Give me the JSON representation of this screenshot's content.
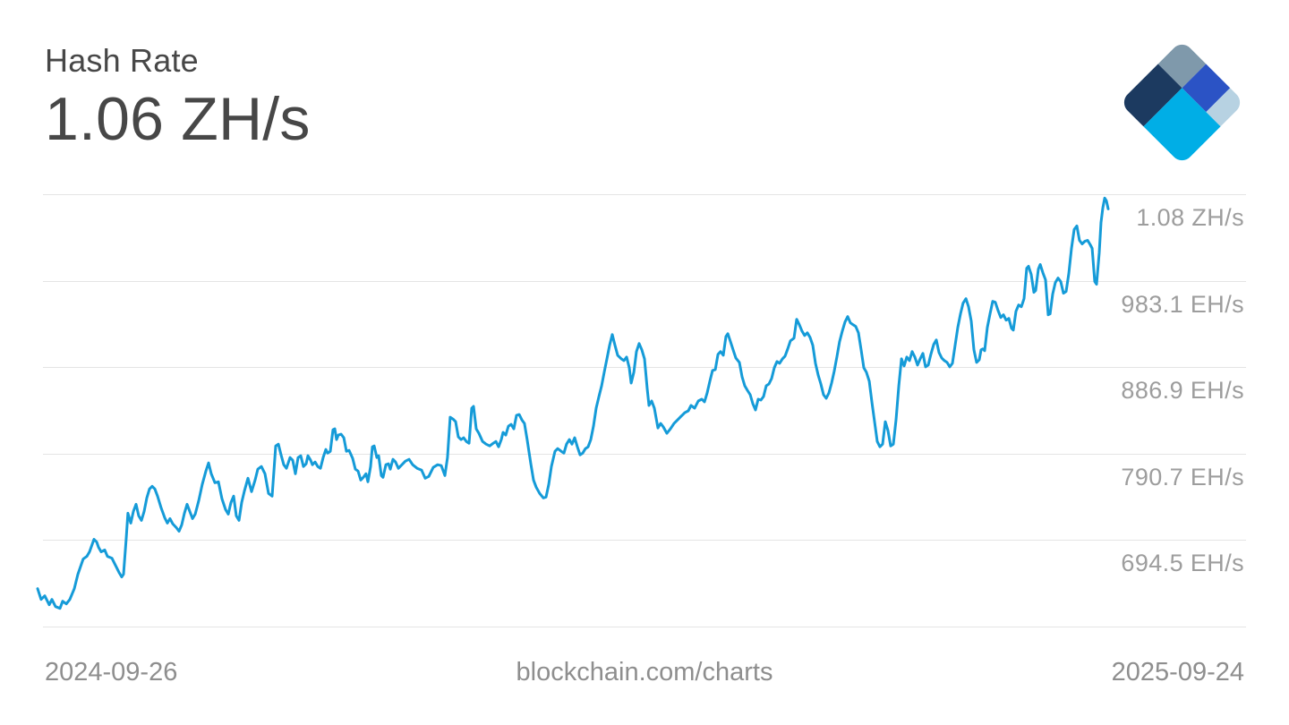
{
  "header": {
    "title": "Hash Rate",
    "value": "1.06 ZH/s"
  },
  "footer": {
    "start_date": "2024-09-26",
    "site": "blockchain.com/charts",
    "end_date": "2025-09-24"
  },
  "logo": {
    "name": "blockchain-com-logo",
    "colors": {
      "slate": "#7F99AB",
      "royal": "#2B53C5",
      "light": "#B7D2E2",
      "navy": "#1C3A60",
      "cyan": "#00AEE6"
    }
  },
  "colors": {
    "title_text": "#474747",
    "axis_label": "#9D9D9D",
    "footer_text": "#8E8E8E",
    "grid": "#E4E4E4",
    "background": "#FFFFFF"
  },
  "chart_data": {
    "type": "line",
    "title": "Hash Rate",
    "current_value": "1.06 ZH/s",
    "unit": "EH/s",
    "x_range": [
      "2024-09-26",
      "2025-09-24"
    ],
    "legend": "none",
    "grid": "horizontal-only",
    "line_color": "#159BD8",
    "y_axis": {
      "side": "right",
      "ticks": [
        {
          "value": 1079.3,
          "label": "1.08 ZH/s"
        },
        {
          "value": 983.1,
          "label": "983.1 EH/s"
        },
        {
          "value": 886.9,
          "label": "886.9 EH/s"
        },
        {
          "value": 790.7,
          "label": "790.7 EH/s"
        },
        {
          "value": 694.5,
          "label": "694.5 EH/s"
        },
        {
          "value": 598.3,
          "label": ""
        }
      ]
    },
    "points": [
      [
        0,
        640
      ],
      [
        0.0033,
        628
      ],
      [
        0.0067,
        632
      ],
      [
        0.0109,
        622
      ],
      [
        0.0134,
        628
      ],
      [
        0.0167,
        620
      ],
      [
        0.0209,
        618
      ],
      [
        0.0234,
        626
      ],
      [
        0.0268,
        623
      ],
      [
        0.0301,
        628
      ],
      [
        0.0343,
        640
      ],
      [
        0.0376,
        656
      ],
      [
        0.0426,
        673
      ],
      [
        0.046,
        676
      ],
      [
        0.0485,
        681
      ],
      [
        0.0527,
        695
      ],
      [
        0.0552,
        692
      ],
      [
        0.0569,
        686
      ],
      [
        0.0594,
        681
      ],
      [
        0.0627,
        683
      ],
      [
        0.0652,
        676
      ],
      [
        0.0694,
        674
      ],
      [
        0.0736,
        664
      ],
      [
        0.0761,
        658
      ],
      [
        0.0786,
        653
      ],
      [
        0.0803,
        656
      ],
      [
        0.0828,
        696
      ],
      [
        0.0844,
        724
      ],
      [
        0.087,
        713
      ],
      [
        0.0895,
        726
      ],
      [
        0.092,
        734
      ],
      [
        0.0945,
        721
      ],
      [
        0.097,
        716
      ],
      [
        0.0995,
        726
      ],
      [
        0.102,
        741
      ],
      [
        0.1045,
        751
      ],
      [
        0.107,
        754
      ],
      [
        0.1095,
        751
      ],
      [
        0.112,
        743
      ],
      [
        0.1154,
        730
      ],
      [
        0.1187,
        719
      ],
      [
        0.1212,
        713
      ],
      [
        0.1237,
        718
      ],
      [
        0.1263,
        712
      ],
      [
        0.1296,
        708
      ],
      [
        0.1321,
        704
      ],
      [
        0.1346,
        711
      ],
      [
        0.1371,
        724
      ],
      [
        0.1396,
        734
      ],
      [
        0.1421,
        726
      ],
      [
        0.1447,
        718
      ],
      [
        0.1472,
        723
      ],
      [
        0.1505,
        738
      ],
      [
        0.1538,
        756
      ],
      [
        0.1572,
        771
      ],
      [
        0.1597,
        780
      ],
      [
        0.1622,
        768
      ],
      [
        0.1656,
        758
      ],
      [
        0.1689,
        759
      ],
      [
        0.1722,
        740
      ],
      [
        0.1756,
        728
      ],
      [
        0.1781,
        723
      ],
      [
        0.1806,
        736
      ],
      [
        0.1831,
        743
      ],
      [
        0.1856,
        721
      ],
      [
        0.1881,
        716
      ],
      [
        0.1906,
        736
      ],
      [
        0.1932,
        749
      ],
      [
        0.1965,
        763
      ],
      [
        0.1998,
        748
      ],
      [
        0.2032,
        761
      ],
      [
        0.2057,
        773
      ],
      [
        0.209,
        776
      ],
      [
        0.2124,
        768
      ],
      [
        0.2157,
        746
      ],
      [
        0.2191,
        743
      ],
      [
        0.2224,
        799
      ],
      [
        0.2249,
        801
      ],
      [
        0.2274,
        789
      ],
      [
        0.2299,
        778
      ],
      [
        0.2324,
        774
      ],
      [
        0.2358,
        786
      ],
      [
        0.2383,
        783
      ],
      [
        0.2408,
        768
      ],
      [
        0.2433,
        786
      ],
      [
        0.2458,
        788
      ],
      [
        0.2483,
        776
      ],
      [
        0.2508,
        779
      ],
      [
        0.2525,
        788
      ],
      [
        0.255,
        783
      ],
      [
        0.2567,
        778
      ],
      [
        0.2592,
        781
      ],
      [
        0.2617,
        776
      ],
      [
        0.2642,
        774
      ],
      [
        0.2667,
        786
      ],
      [
        0.2692,
        795
      ],
      [
        0.2709,
        791
      ],
      [
        0.2734,
        793
      ],
      [
        0.2759,
        817
      ],
      [
        0.2776,
        818
      ],
      [
        0.2793,
        806
      ],
      [
        0.2809,
        811
      ],
      [
        0.2835,
        812
      ],
      [
        0.286,
        808
      ],
      [
        0.2885,
        793
      ],
      [
        0.291,
        794
      ],
      [
        0.2943,
        785
      ],
      [
        0.2968,
        773
      ],
      [
        0.2993,
        771
      ],
      [
        0.3018,
        761
      ],
      [
        0.3043,
        764
      ],
      [
        0.3068,
        768
      ],
      [
        0.3085,
        759
      ],
      [
        0.311,
        776
      ],
      [
        0.3127,
        798
      ],
      [
        0.3144,
        799
      ],
      [
        0.3169,
        786
      ],
      [
        0.3186,
        788
      ],
      [
        0.3211,
        766
      ],
      [
        0.3227,
        764
      ],
      [
        0.3253,
        778
      ],
      [
        0.3278,
        779
      ],
      [
        0.3294,
        773
      ],
      [
        0.3319,
        784
      ],
      [
        0.3344,
        781
      ],
      [
        0.337,
        774
      ],
      [
        0.3403,
        778
      ],
      [
        0.3436,
        782
      ],
      [
        0.347,
        784
      ],
      [
        0.3503,
        778
      ],
      [
        0.3545,
        774
      ],
      [
        0.3587,
        772
      ],
      [
        0.362,
        763
      ],
      [
        0.3654,
        765
      ],
      [
        0.3696,
        775
      ],
      [
        0.3737,
        778
      ],
      [
        0.3771,
        777
      ],
      [
        0.3804,
        766
      ],
      [
        0.3829,
        786
      ],
      [
        0.3854,
        831
      ],
      [
        0.388,
        829
      ],
      [
        0.3905,
        826
      ],
      [
        0.393,
        809
      ],
      [
        0.3955,
        806
      ],
      [
        0.398,
        808
      ],
      [
        0.4005,
        804
      ],
      [
        0.403,
        802
      ],
      [
        0.4055,
        841
      ],
      [
        0.4072,
        843
      ],
      [
        0.4097,
        818
      ],
      [
        0.4122,
        813
      ],
      [
        0.4156,
        804
      ],
      [
        0.4189,
        801
      ],
      [
        0.4223,
        799
      ],
      [
        0.4256,
        802
      ],
      [
        0.4281,
        804
      ],
      [
        0.4306,
        798
      ],
      [
        0.4331,
        806
      ],
      [
        0.4348,
        814
      ],
      [
        0.4373,
        811
      ],
      [
        0.4398,
        821
      ],
      [
        0.4423,
        823
      ],
      [
        0.4448,
        818
      ],
      [
        0.4473,
        833
      ],
      [
        0.4498,
        834
      ],
      [
        0.4523,
        828
      ],
      [
        0.4548,
        824
      ],
      [
        0.4573,
        806
      ],
      [
        0.4607,
        779
      ],
      [
        0.4632,
        761
      ],
      [
        0.4657,
        753
      ],
      [
        0.469,
        746
      ],
      [
        0.4724,
        741
      ],
      [
        0.4749,
        742
      ],
      [
        0.4774,
        756
      ],
      [
        0.4799,
        776
      ],
      [
        0.4833,
        793
      ],
      [
        0.4858,
        796
      ],
      [
        0.4891,
        793
      ],
      [
        0.4916,
        791
      ],
      [
        0.4941,
        801
      ],
      [
        0.4967,
        806
      ],
      [
        0.4992,
        801
      ],
      [
        0.5017,
        808
      ],
      [
        0.5042,
        798
      ],
      [
        0.5067,
        789
      ],
      [
        0.5092,
        791
      ],
      [
        0.5117,
        796
      ],
      [
        0.5142,
        798
      ],
      [
        0.5167,
        806
      ],
      [
        0.5192,
        821
      ],
      [
        0.5217,
        841
      ],
      [
        0.5243,
        854
      ],
      [
        0.5268,
        866
      ],
      [
        0.5293,
        881
      ],
      [
        0.5318,
        896
      ],
      [
        0.5343,
        911
      ],
      [
        0.5368,
        923
      ],
      [
        0.5393,
        911
      ],
      [
        0.5418,
        900
      ],
      [
        0.5452,
        896
      ],
      [
        0.5477,
        894
      ],
      [
        0.5502,
        898
      ],
      [
        0.5527,
        886
      ],
      [
        0.5544,
        869
      ],
      [
        0.5569,
        881
      ],
      [
        0.5594,
        904
      ],
      [
        0.5619,
        913
      ],
      [
        0.5644,
        906
      ],
      [
        0.5669,
        896
      ],
      [
        0.5694,
        863
      ],
      [
        0.5711,
        844
      ],
      [
        0.5736,
        849
      ],
      [
        0.5761,
        841
      ],
      [
        0.5794,
        819
      ],
      [
        0.5819,
        824
      ],
      [
        0.5845,
        820
      ],
      [
        0.5878,
        813
      ],
      [
        0.5911,
        818
      ],
      [
        0.5945,
        824
      ],
      [
        0.5978,
        828
      ],
      [
        0.6011,
        832
      ],
      [
        0.6045,
        836
      ],
      [
        0.6078,
        838
      ],
      [
        0.6104,
        844
      ],
      [
        0.6137,
        841
      ],
      [
        0.6171,
        849
      ],
      [
        0.6204,
        851
      ],
      [
        0.6229,
        848
      ],
      [
        0.6254,
        858
      ],
      [
        0.6279,
        871
      ],
      [
        0.6304,
        883
      ],
      [
        0.633,
        884
      ],
      [
        0.6355,
        901
      ],
      [
        0.638,
        904
      ],
      [
        0.6405,
        900
      ],
      [
        0.643,
        921
      ],
      [
        0.6447,
        924
      ],
      [
        0.6472,
        915
      ],
      [
        0.6497,
        906
      ],
      [
        0.6522,
        897
      ],
      [
        0.6555,
        892
      ],
      [
        0.658,
        876
      ],
      [
        0.6605,
        866
      ],
      [
        0.663,
        861
      ],
      [
        0.6656,
        856
      ],
      [
        0.6681,
        846
      ],
      [
        0.6706,
        839
      ],
      [
        0.6731,
        851
      ],
      [
        0.6756,
        850
      ],
      [
        0.6781,
        854
      ],
      [
        0.6806,
        866
      ],
      [
        0.6831,
        868
      ],
      [
        0.6856,
        874
      ],
      [
        0.6881,
        886
      ],
      [
        0.6906,
        893
      ],
      [
        0.6931,
        891
      ],
      [
        0.6957,
        896
      ],
      [
        0.6982,
        899
      ],
      [
        0.7007,
        907
      ],
      [
        0.7032,
        916
      ],
      [
        0.7065,
        919
      ],
      [
        0.709,
        940
      ],
      [
        0.7115,
        934
      ],
      [
        0.714,
        927
      ],
      [
        0.7165,
        922
      ],
      [
        0.719,
        925
      ],
      [
        0.7215,
        920
      ],
      [
        0.7241,
        911
      ],
      [
        0.7266,
        891
      ],
      [
        0.7291,
        878
      ],
      [
        0.7316,
        868
      ],
      [
        0.7341,
        856
      ],
      [
        0.7366,
        852
      ],
      [
        0.7391,
        858
      ],
      [
        0.7416,
        869
      ],
      [
        0.7441,
        882
      ],
      [
        0.7466,
        898
      ],
      [
        0.7491,
        915
      ],
      [
        0.7517,
        927
      ],
      [
        0.7542,
        937
      ],
      [
        0.7567,
        943
      ],
      [
        0.7592,
        936
      ],
      [
        0.7617,
        934
      ],
      [
        0.7642,
        932
      ],
      [
        0.7667,
        925
      ],
      [
        0.7692,
        906
      ],
      [
        0.7717,
        886
      ],
      [
        0.7742,
        881
      ],
      [
        0.7768,
        871
      ],
      [
        0.7793,
        848
      ],
      [
        0.7818,
        826
      ],
      [
        0.7843,
        804
      ],
      [
        0.7868,
        798
      ],
      [
        0.7893,
        801
      ],
      [
        0.7918,
        826
      ],
      [
        0.7943,
        816
      ],
      [
        0.7968,
        799
      ],
      [
        0.7993,
        801
      ],
      [
        0.8018,
        828
      ],
      [
        0.8044,
        866
      ],
      [
        0.8069,
        896
      ],
      [
        0.8094,
        888
      ],
      [
        0.8119,
        898
      ],
      [
        0.8144,
        894
      ],
      [
        0.8169,
        904
      ],
      [
        0.8194,
        898
      ],
      [
        0.8219,
        889
      ],
      [
        0.8244,
        896
      ],
      [
        0.8269,
        902
      ],
      [
        0.8294,
        887
      ],
      [
        0.8319,
        889
      ],
      [
        0.8344,
        901
      ],
      [
        0.837,
        912
      ],
      [
        0.8395,
        917
      ],
      [
        0.842,
        903
      ],
      [
        0.8445,
        897
      ],
      [
        0.847,
        894
      ],
      [
        0.8495,
        892
      ],
      [
        0.852,
        887
      ],
      [
        0.8545,
        891
      ],
      [
        0.857,
        911
      ],
      [
        0.8595,
        931
      ],
      [
        0.862,
        946
      ],
      [
        0.8645,
        958
      ],
      [
        0.8671,
        963
      ],
      [
        0.8696,
        954
      ],
      [
        0.8721,
        938
      ],
      [
        0.8746,
        906
      ],
      [
        0.8771,
        892
      ],
      [
        0.8796,
        895
      ],
      [
        0.8813,
        906
      ],
      [
        0.8829,
        907
      ],
      [
        0.8846,
        905
      ],
      [
        0.8871,
        931
      ],
      [
        0.8896,
        946
      ],
      [
        0.8921,
        960
      ],
      [
        0.8946,
        959
      ],
      [
        0.8971,
        950
      ],
      [
        0.8997,
        942
      ],
      [
        0.9022,
        945
      ],
      [
        0.9047,
        939
      ],
      [
        0.9072,
        941
      ],
      [
        0.9097,
        930
      ],
      [
        0.9114,
        928
      ],
      [
        0.9139,
        949
      ],
      [
        0.9164,
        956
      ],
      [
        0.9189,
        954
      ],
      [
        0.9214,
        963
      ],
      [
        0.9239,
        997
      ],
      [
        0.9256,
        999
      ],
      [
        0.9281,
        990
      ],
      [
        0.9306,
        970
      ],
      [
        0.9323,
        972
      ],
      [
        0.9348,
        996
      ],
      [
        0.9365,
        1001
      ],
      [
        0.939,
        992
      ],
      [
        0.9415,
        984
      ],
      [
        0.944,
        945
      ],
      [
        0.9457,
        946
      ],
      [
        0.9482,
        968
      ],
      [
        0.9507,
        981
      ],
      [
        0.9532,
        986
      ],
      [
        0.9557,
        982
      ],
      [
        0.9582,
        969
      ],
      [
        0.9607,
        971
      ],
      [
        0.9632,
        991
      ],
      [
        0.9657,
        1019
      ],
      [
        0.9682,
        1040
      ],
      [
        0.9707,
        1044
      ],
      [
        0.9732,
        1028
      ],
      [
        0.9757,
        1024
      ],
      [
        0.9783,
        1027
      ],
      [
        0.9808,
        1028
      ],
      [
        0.9833,
        1023
      ],
      [
        0.985,
        1019
      ],
      [
        0.9875,
        982
      ],
      [
        0.9891,
        979
      ],
      [
        0.9916,
        1014
      ],
      [
        0.9933,
        1048
      ],
      [
        0.995,
        1064
      ],
      [
        0.9967,
        1075
      ],
      [
        0.9983,
        1072
      ],
      [
        1,
        1063
      ]
    ]
  }
}
